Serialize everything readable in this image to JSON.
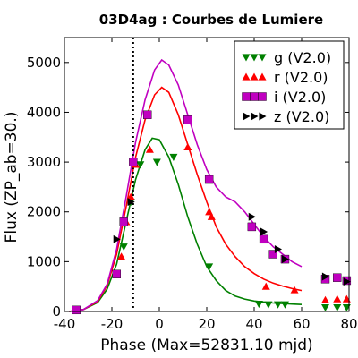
{
  "chart_data": {
    "type": "scatter",
    "title": "03D4ag : Courbes de Lumiere",
    "xlabel": "Phase (Max=52831.10 mjd)",
    "ylabel": "Flux (ZP_ab=30.)",
    "xlim": [
      -40,
      80
    ],
    "ylim": [
      0,
      5500
    ],
    "xticks": [
      -40,
      -20,
      0,
      20,
      40,
      60,
      80
    ],
    "yticks": [
      0,
      1000,
      2000,
      3000,
      4000,
      5000
    ],
    "grid": false,
    "legend_position": "top-right",
    "vline_x": -11,
    "series": [
      {
        "name": "g (V2.0)",
        "color": "#008000",
        "marker": "triangle-down",
        "points": [
          [
            -35,
            30
          ],
          [
            -18,
            750
          ],
          [
            -15,
            1300
          ],
          [
            -12,
            2200
          ],
          [
            -8,
            2950
          ],
          [
            -1,
            3000
          ],
          [
            6,
            3100
          ],
          [
            21,
            900
          ],
          [
            42,
            150
          ],
          [
            46,
            140
          ],
          [
            50,
            140
          ],
          [
            53,
            140
          ],
          [
            70,
            80
          ],
          [
            75,
            80
          ],
          [
            79,
            80
          ]
        ],
        "curve": [
          [
            -38,
            0
          ],
          [
            -32,
            40
          ],
          [
            -26,
            180
          ],
          [
            -22,
            450
          ],
          [
            -18,
            950
          ],
          [
            -14,
            1800
          ],
          [
            -10,
            2650
          ],
          [
            -6,
            3250
          ],
          [
            -3,
            3480
          ],
          [
            0,
            3450
          ],
          [
            4,
            3100
          ],
          [
            8,
            2550
          ],
          [
            12,
            1900
          ],
          [
            16,
            1350
          ],
          [
            20,
            900
          ],
          [
            24,
            620
          ],
          [
            28,
            420
          ],
          [
            32,
            310
          ],
          [
            36,
            250
          ],
          [
            40,
            210
          ],
          [
            44,
            190
          ],
          [
            48,
            170
          ],
          [
            52,
            160
          ],
          [
            56,
            150
          ],
          [
            60,
            140
          ]
        ]
      },
      {
        "name": "r (V2.0)",
        "color": "#ff0000",
        "marker": "triangle-up",
        "points": [
          [
            -35,
            30
          ],
          [
            -18,
            750
          ],
          [
            -16,
            1100
          ],
          [
            -14,
            1800
          ],
          [
            -12,
            2300
          ],
          [
            -10,
            2950
          ],
          [
            -4,
            3250
          ],
          [
            12,
            3300
          ],
          [
            21,
            2000
          ],
          [
            22,
            1900
          ],
          [
            45,
            500
          ],
          [
            57,
            430
          ],
          [
            70,
            230
          ],
          [
            75,
            250
          ],
          [
            79,
            250
          ]
        ],
        "curve": [
          [
            -38,
            0
          ],
          [
            -32,
            40
          ],
          [
            -26,
            200
          ],
          [
            -22,
            520
          ],
          [
            -18,
            1150
          ],
          [
            -14,
            2100
          ],
          [
            -10,
            3100
          ],
          [
            -6,
            3850
          ],
          [
            -2,
            4350
          ],
          [
            1,
            4500
          ],
          [
            4,
            4400
          ],
          [
            8,
            3950
          ],
          [
            12,
            3350
          ],
          [
            16,
            2750
          ],
          [
            20,
            2200
          ],
          [
            24,
            1700
          ],
          [
            28,
            1350
          ],
          [
            32,
            1100
          ],
          [
            36,
            900
          ],
          [
            40,
            760
          ],
          [
            44,
            650
          ],
          [
            48,
            570
          ],
          [
            52,
            510
          ],
          [
            56,
            460
          ],
          [
            60,
            420
          ]
        ]
      },
      {
        "name": "i (V2.0)",
        "color": "#c000c0",
        "marker": "square",
        "points": [
          [
            -35,
            30
          ],
          [
            -18,
            750
          ],
          [
            -15,
            1800
          ],
          [
            -11,
            3000
          ],
          [
            -5,
            3950
          ],
          [
            12,
            3850
          ],
          [
            21,
            2650
          ],
          [
            39,
            1700
          ],
          [
            44,
            1450
          ],
          [
            48,
            1150
          ],
          [
            53,
            1050
          ],
          [
            70,
            650
          ],
          [
            75,
            680
          ],
          [
            79,
            620
          ]
        ],
        "curve": [
          [
            -38,
            0
          ],
          [
            -32,
            40
          ],
          [
            -26,
            220
          ],
          [
            -22,
            550
          ],
          [
            -18,
            1250
          ],
          [
            -14,
            2300
          ],
          [
            -10,
            3400
          ],
          [
            -6,
            4250
          ],
          [
            -2,
            4850
          ],
          [
            1,
            5050
          ],
          [
            4,
            4950
          ],
          [
            8,
            4550
          ],
          [
            12,
            3950
          ],
          [
            16,
            3350
          ],
          [
            20,
            2850
          ],
          [
            24,
            2500
          ],
          [
            28,
            2300
          ],
          [
            32,
            2200
          ],
          [
            36,
            2000
          ],
          [
            40,
            1750
          ],
          [
            44,
            1500
          ],
          [
            48,
            1300
          ],
          [
            52,
            1150
          ],
          [
            56,
            1000
          ],
          [
            60,
            900
          ]
        ]
      },
      {
        "name": "z (V2.0)",
        "color": "#000000",
        "marker": "triangle-right",
        "points": [
          [
            -18,
            1450
          ],
          [
            -12,
            2200
          ],
          [
            39,
            1900
          ],
          [
            44,
            1600
          ],
          [
            50,
            1250
          ],
          [
            53,
            1050
          ],
          [
            70,
            700
          ],
          [
            79,
            600
          ]
        ],
        "curve": []
      }
    ]
  }
}
